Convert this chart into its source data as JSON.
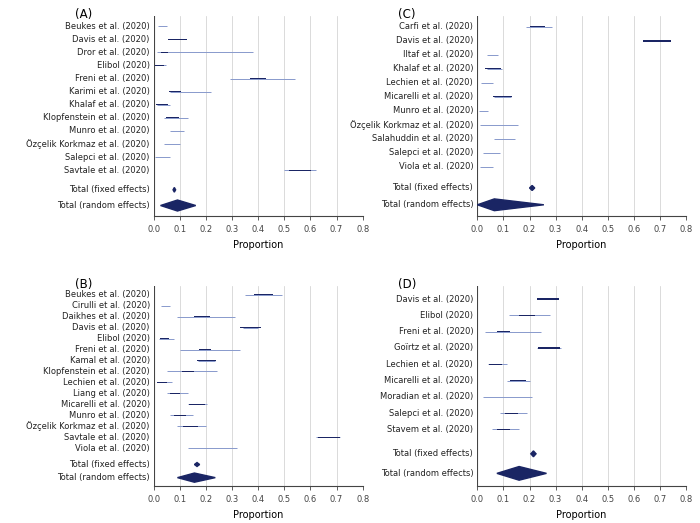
{
  "panel_A": {
    "label": "(A)",
    "studies": [
      {
        "name": "Beukes et al. (2020)",
        "est": 0.03,
        "lo": 0.015,
        "hi": 0.05,
        "size": 3
      },
      {
        "name": "Davis et al. (2020)",
        "est": 0.09,
        "lo": 0.08,
        "hi": 0.1,
        "size": 6
      },
      {
        "name": "Dror et al. (2020)",
        "est": 0.04,
        "lo": 0.01,
        "hi": 0.38,
        "size": 2
      },
      {
        "name": "Elibol (2020)",
        "est": 0.02,
        "lo": 0.005,
        "hi": 0.045,
        "size": 3
      },
      {
        "name": "Freni et al. (2020)",
        "est": 0.4,
        "lo": 0.29,
        "hi": 0.54,
        "size": 5
      },
      {
        "name": "Karimi et al. (2020)",
        "est": 0.08,
        "lo": 0.06,
        "hi": 0.22,
        "size": 4
      },
      {
        "name": "Khalaf et al. (2020)",
        "est": 0.03,
        "lo": 0.01,
        "hi": 0.06,
        "size": 4
      },
      {
        "name": "Klopfenstein et al. (2020)",
        "est": 0.07,
        "lo": 0.04,
        "hi": 0.13,
        "size": 4
      },
      {
        "name": "Munro et al. (2020)",
        "est": 0.085,
        "lo": 0.06,
        "hi": 0.115,
        "size": 4
      },
      {
        "name": "Özçelik Korkmaz et al. (2020)",
        "est": 0.065,
        "lo": 0.04,
        "hi": 0.1,
        "size": 4
      },
      {
        "name": "Salepci et al. (2020)",
        "est": 0.025,
        "lo": 0.005,
        "hi": 0.06,
        "size": 3
      },
      {
        "name": "Savtale et al. (2020)",
        "est": 0.56,
        "lo": 0.5,
        "hi": 0.62,
        "size": 7
      }
    ],
    "fixed": {
      "est": 0.078,
      "lo": 0.073,
      "hi": 0.083
    },
    "random": {
      "est": 0.09,
      "lo": 0.025,
      "hi": 0.16
    },
    "xlim": [
      0,
      0.8
    ],
    "xticks": [
      0.0,
      0.1,
      0.2,
      0.3,
      0.4,
      0.5,
      0.6,
      0.7,
      0.8
    ]
  },
  "panel_B": {
    "label": "(B)",
    "studies": [
      {
        "name": "Beukes et al. (2020)",
        "est": 0.42,
        "lo": 0.35,
        "hi": 0.49,
        "size": 6
      },
      {
        "name": "Cirulli et al. (2020)",
        "est": 0.038,
        "lo": 0.025,
        "hi": 0.06,
        "size": 3
      },
      {
        "name": "Daikhes et al. (2020)",
        "est": 0.185,
        "lo": 0.09,
        "hi": 0.31,
        "size": 5
      },
      {
        "name": "Davis et al. (2020)",
        "est": 0.37,
        "lo": 0.34,
        "hi": 0.4,
        "size": 7
      },
      {
        "name": "Elibol (2020)",
        "est": 0.04,
        "lo": 0.02,
        "hi": 0.075,
        "size": 3
      },
      {
        "name": "Freni et al. (2020)",
        "est": 0.195,
        "lo": 0.1,
        "hi": 0.33,
        "size": 4
      },
      {
        "name": "Kamal et al. (2020)",
        "est": 0.2,
        "lo": 0.17,
        "hi": 0.235,
        "size": 6
      },
      {
        "name": "Klopfenstein et al. (2020)",
        "est": 0.13,
        "lo": 0.05,
        "hi": 0.24,
        "size": 4
      },
      {
        "name": "Lechien et al. (2020)",
        "est": 0.03,
        "lo": 0.01,
        "hi": 0.07,
        "size": 3
      },
      {
        "name": "Liang et al. (2020)",
        "est": 0.08,
        "lo": 0.05,
        "hi": 0.13,
        "size": 3
      },
      {
        "name": "Micarelli et al. (2020)",
        "est": 0.165,
        "lo": 0.13,
        "hi": 0.205,
        "size": 5
      },
      {
        "name": "Munro et al. (2020)",
        "est": 0.1,
        "lo": 0.06,
        "hi": 0.15,
        "size": 4
      },
      {
        "name": "Özçelik Korkmaz et al. (2020)",
        "est": 0.14,
        "lo": 0.09,
        "hi": 0.2,
        "size": 5
      },
      {
        "name": "Savtale et al. (2020)",
        "est": 0.67,
        "lo": 0.62,
        "hi": 0.715,
        "size": 7
      },
      {
        "name": "Viola et al. (2020)",
        "est": 0.21,
        "lo": 0.13,
        "hi": 0.32,
        "size": 5
      }
    ],
    "fixed": {
      "est": 0.165,
      "lo": 0.155,
      "hi": 0.175
    },
    "random": {
      "est": 0.155,
      "lo": 0.09,
      "hi": 0.235
    },
    "xlim": [
      0,
      0.8
    ],
    "xticks": [
      0.0,
      0.1,
      0.2,
      0.3,
      0.4,
      0.5,
      0.6,
      0.7,
      0.8
    ]
  },
  "panel_C": {
    "label": "(C)",
    "studies": [
      {
        "name": "Carfi et al. (2020)",
        "est": 0.23,
        "lo": 0.185,
        "hi": 0.285,
        "size": 5
      },
      {
        "name": "Davis et al. (2020)",
        "est": 0.69,
        "lo": 0.66,
        "hi": 0.72,
        "size": 9
      },
      {
        "name": "Iltaf et al. (2020)",
        "est": 0.055,
        "lo": 0.035,
        "hi": 0.08,
        "size": 4
      },
      {
        "name": "Khalaf et al. (2020)",
        "est": 0.06,
        "lo": 0.035,
        "hi": 0.095,
        "size": 5
      },
      {
        "name": "Lechien et al. (2020)",
        "est": 0.032,
        "lo": 0.015,
        "hi": 0.06,
        "size": 4
      },
      {
        "name": "Micarelli et al. (2020)",
        "est": 0.095,
        "lo": 0.065,
        "hi": 0.13,
        "size": 6
      },
      {
        "name": "Munro et al. (2020)",
        "est": 0.018,
        "lo": 0.005,
        "hi": 0.04,
        "size": 3
      },
      {
        "name": "Özçelik Korkmaz et al. (2020)",
        "est": 0.06,
        "lo": 0.01,
        "hi": 0.155,
        "size": 3
      },
      {
        "name": "Salahuddin et al. (2020)",
        "est": 0.1,
        "lo": 0.065,
        "hi": 0.145,
        "size": 5
      },
      {
        "name": "Salepci et al. (2020)",
        "est": 0.045,
        "lo": 0.02,
        "hi": 0.085,
        "size": 4
      },
      {
        "name": "Viola et al. (2020)",
        "est": 0.03,
        "lo": 0.01,
        "hi": 0.06,
        "size": 4
      }
    ],
    "fixed": {
      "est": 0.21,
      "lo": 0.2,
      "hi": 0.22
    },
    "random": {
      "est": 0.065,
      "lo": 0.0,
      "hi": 0.255
    },
    "xlim": [
      0,
      0.8
    ],
    "xticks": [
      0.0,
      0.1,
      0.2,
      0.3,
      0.4,
      0.5,
      0.6,
      0.7,
      0.8
    ]
  },
  "panel_D": {
    "label": "(D)",
    "studies": [
      {
        "name": "Davis et al. (2020)",
        "est": 0.27,
        "lo": 0.24,
        "hi": 0.3,
        "size": 7
      },
      {
        "name": "Elibol (2020)",
        "est": 0.19,
        "lo": 0.12,
        "hi": 0.28,
        "size": 5
      },
      {
        "name": "Freni et al. (2020)",
        "est": 0.1,
        "lo": 0.03,
        "hi": 0.245,
        "size": 4
      },
      {
        "name": "Goïrtz et al. (2020)",
        "est": 0.275,
        "lo": 0.23,
        "hi": 0.32,
        "size": 7
      },
      {
        "name": "Lechien et al. (2020)",
        "est": 0.07,
        "lo": 0.04,
        "hi": 0.115,
        "size": 4
      },
      {
        "name": "Micarelli et al. (2020)",
        "est": 0.155,
        "lo": 0.115,
        "hi": 0.2,
        "size": 5
      },
      {
        "name": "Moradian et al. (2020)",
        "est": 0.08,
        "lo": 0.02,
        "hi": 0.21,
        "size": 3
      },
      {
        "name": "Salepci et al. (2020)",
        "est": 0.13,
        "lo": 0.085,
        "hi": 0.19,
        "size": 4
      },
      {
        "name": "Stavem et al. (2020)",
        "est": 0.1,
        "lo": 0.055,
        "hi": 0.16,
        "size": 4
      }
    ],
    "fixed": {
      "est": 0.215,
      "lo": 0.205,
      "hi": 0.225
    },
    "random": {
      "est": 0.16,
      "lo": 0.075,
      "hi": 0.265
    },
    "xlim": [
      0,
      0.8
    ],
    "xticks": [
      0.0,
      0.1,
      0.2,
      0.3,
      0.4,
      0.5,
      0.6,
      0.7,
      0.8
    ]
  },
  "square_color": "#1a2564",
  "line_color": "#8899cc",
  "diamond_color": "#1a2564",
  "axis_color": "#444444",
  "grid_color": "#cccccc",
  "text_color": "#222222",
  "bg_color": "#ffffff",
  "xlabel": "Proportion",
  "label_fontsize": 6.0,
  "tick_fontsize": 6.0,
  "xlabel_fontsize": 7.0,
  "panel_label_fontsize": 8.5
}
